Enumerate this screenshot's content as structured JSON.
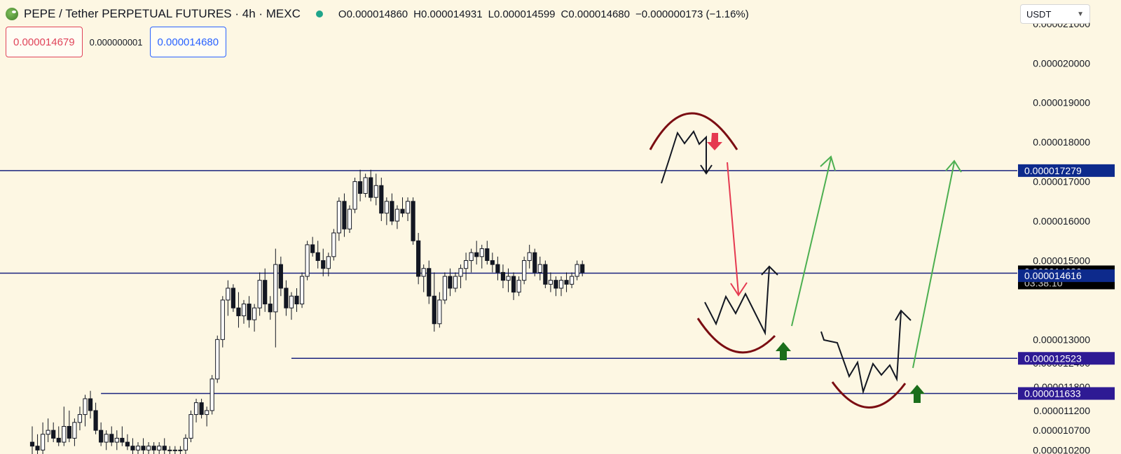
{
  "header": {
    "symbol": "PEPE / Tether PERPETUAL FUTURES · 4h · MEXC",
    "ohlc": [
      {
        "label": "O",
        "value": "0.000014860"
      },
      {
        "label": "H",
        "value": "0.000014931"
      },
      {
        "label": "L",
        "value": "0.000014599"
      },
      {
        "label": "C",
        "value": "0.000014680"
      }
    ],
    "change": "−0.000000173 (−1.16%)"
  },
  "trade": {
    "sell_price": "0.000014679",
    "spread": "0.000000001",
    "buy_price": "0.000014680"
  },
  "currency": {
    "selected": "USDT"
  },
  "colors": {
    "background": "#fdf7e3",
    "up": "#ffffff",
    "down": "#131722",
    "level_line": "#1a237e",
    "arrow_green": "#4caf50",
    "arrow_red": "#e53950",
    "arc_dark_red": "#7b0d12",
    "badge_blue": "#0d2a8c",
    "badge_purple": "#2e1a94"
  },
  "chart_data": {
    "type": "candlestick",
    "y_axis": {
      "min": 1.01e-05,
      "max": 2.16e-05,
      "ticks": [
        {
          "value": 2.1e-05,
          "label": "0.000021000"
        },
        {
          "value": 2e-05,
          "label": "0.000020000"
        },
        {
          "value": 1.9e-05,
          "label": "0.000019000"
        },
        {
          "value": 1.8e-05,
          "label": "0.000018000"
        },
        {
          "value": 1.7e-05,
          "label": "0.000017000"
        },
        {
          "value": 1.6e-05,
          "label": "0.000016000"
        },
        {
          "value": 1.5e-05,
          "label": "0.000015000"
        },
        {
          "value": 1.3e-05,
          "label": "0.000013000"
        },
        {
          "value": 1.24e-05,
          "label": "0.000012400"
        },
        {
          "value": 1.18e-05,
          "label": "0.000011800"
        },
        {
          "value": 1.12e-05,
          "label": "0.000011200"
        },
        {
          "value": 1.07e-05,
          "label": "0.000010700"
        },
        {
          "value": 1.02e-05,
          "label": "0.000010200"
        }
      ]
    },
    "price_badges": [
      {
        "value": 1.7279e-05,
        "label": "0.000017279",
        "style": "level"
      },
      {
        "value": 1.468e-05,
        "label": "0.000014680",
        "sub": "03:38:10",
        "style": "current"
      },
      {
        "value": 1.4616e-05,
        "label": "0.000014616",
        "style": "level"
      },
      {
        "value": 1.2523e-05,
        "label": "0.000012523",
        "style": "level2"
      },
      {
        "value": 1.1633e-05,
        "label": "0.000011633",
        "style": "level2"
      }
    ],
    "horizontal_lines": [
      {
        "value": 1.7279e-05,
        "from": 0
      },
      {
        "value": 1.468e-05,
        "from": 0
      },
      {
        "value": 1.2523e-05,
        "from": 49
      },
      {
        "value": 1.1633e-05,
        "from": 13
      }
    ],
    "candles": [
      [
        1.04e-05,
        1.08e-05,
        1.01e-05,
        1.03e-05
      ],
      [
        1.03e-05,
        1.06e-05,
        1.01e-05,
        1.02e-05
      ],
      [
        1.02e-05,
        1.09e-05,
        1.01e-05,
        1.06e-05
      ],
      [
        1.06e-05,
        1.1e-05,
        1.04e-05,
        1.07e-05
      ],
      [
        1.07e-05,
        1.09e-05,
        1.04e-05,
        1.05e-05
      ],
      [
        1.05e-05,
        1.08e-05,
        1.03e-05,
        1.04e-05
      ],
      [
        1.04e-05,
        1.13e-05,
        1.03e-05,
        1.08e-05
      ],
      [
        1.08e-05,
        1.12e-05,
        1.04e-05,
        1.05e-05
      ],
      [
        1.05e-05,
        1.1e-05,
        1.03e-05,
        1.09e-05
      ],
      [
        1.09e-05,
        1.13e-05,
        1.07e-05,
        1.11e-05
      ],
      [
        1.11e-05,
        1.16e-05,
        1.08e-05,
        1.15e-05
      ],
      [
        1.15e-05,
        1.17e-05,
        1.1e-05,
        1.12e-05
      ],
      [
        1.12e-05,
        1.14e-05,
        1.06e-05,
        1.07e-05
      ],
      [
        1.07e-05,
        1.09e-05,
        1.03e-05,
        1.04e-05
      ],
      [
        1.04e-05,
        1.07e-05,
        1.02e-05,
        1.06e-05
      ],
      [
        1.06e-05,
        1.08e-05,
        1.03e-05,
        1.04e-05
      ],
      [
        1.04e-05,
        1.07e-05,
        1.02e-05,
        1.05e-05
      ],
      [
        1.05e-05,
        1.08e-05,
        1.03e-05,
        1.04e-05
      ],
      [
        1.04e-05,
        1.06e-05,
        1.02e-05,
        1.03e-05
      ],
      [
        1.03e-05,
        1.05e-05,
        1.01e-05,
        1.02e-05
      ],
      [
        1.02e-05,
        1.04e-05,
        1.01e-05,
        1.03e-05
      ],
      [
        1.03e-05,
        1.05e-05,
        1.01e-05,
        1.02e-05
      ],
      [
        1.02e-05,
        1.04e-05,
        1.01e-05,
        1.03e-05
      ],
      [
        1.03e-05,
        1.04e-05,
        1.01e-05,
        1.02e-05
      ],
      [
        1.02e-05,
        1.04e-05,
        1.01e-05,
        1.03e-05
      ],
      [
        1.03e-05,
        1.05e-05,
        1.01e-05,
        1.02e-05
      ],
      [
        1.02e-05,
        1.03e-05,
        1.01e-05,
        1.02e-05
      ],
      [
        1.02e-05,
        1.03e-05,
        1.01e-05,
        1.02e-05
      ],
      [
        1.02e-05,
        1.03e-05,
        1.01e-05,
        1.02e-05
      ],
      [
        1.02e-05,
        1.06e-05,
        1.01e-05,
        1.05e-05
      ],
      [
        1.05e-05,
        1.12e-05,
        1.04e-05,
        1.11e-05
      ],
      [
        1.11e-05,
        1.15e-05,
        1.09e-05,
        1.14e-05
      ],
      [
        1.14e-05,
        1.15e-05,
        1.1e-05,
        1.11e-05
      ],
      [
        1.11e-05,
        1.13e-05,
        1.08e-05,
        1.12e-05
      ],
      [
        1.12e-05,
        1.21e-05,
        1.11e-05,
        1.2e-05
      ],
      [
        1.2e-05,
        1.31e-05,
        1.19e-05,
        1.3e-05
      ],
      [
        1.3e-05,
        1.41e-05,
        1.28e-05,
        1.4e-05
      ],
      [
        1.4e-05,
        1.45e-05,
        1.36e-05,
        1.43e-05
      ],
      [
        1.43e-05,
        1.44e-05,
        1.37e-05,
        1.38e-05
      ],
      [
        1.38e-05,
        1.42e-05,
        1.33e-05,
        1.36e-05
      ],
      [
        1.36e-05,
        1.4e-05,
        1.34e-05,
        1.39e-05
      ],
      [
        1.39e-05,
        1.41e-05,
        1.33e-05,
        1.35e-05
      ],
      [
        1.35e-05,
        1.39e-05,
        1.32e-05,
        1.38e-05
      ],
      [
        1.38e-05,
        1.47e-05,
        1.36e-05,
        1.45e-05
      ],
      [
        1.45e-05,
        1.48e-05,
        1.37e-05,
        1.39e-05
      ],
      [
        1.39e-05,
        1.41e-05,
        1.35e-05,
        1.37e-05
      ],
      [
        1.37e-05,
        1.53e-05,
        1.28e-05,
        1.49e-05
      ],
      [
        1.49e-05,
        1.51e-05,
        1.41e-05,
        1.43e-05
      ],
      [
        1.43e-05,
        1.45e-05,
        1.36e-05,
        1.38e-05
      ],
      [
        1.38e-05,
        1.42e-05,
        1.35e-05,
        1.41e-05
      ],
      [
        1.41e-05,
        1.43e-05,
        1.37e-05,
        1.39e-05
      ],
      [
        1.39e-05,
        1.47e-05,
        1.38e-05,
        1.46e-05
      ],
      [
        1.46e-05,
        1.55e-05,
        1.45e-05,
        1.54e-05
      ],
      [
        1.54e-05,
        1.56e-05,
        1.51e-05,
        1.52e-05
      ],
      [
        1.52e-05,
        1.55e-05,
        1.48e-05,
        1.5e-05
      ],
      [
        1.5e-05,
        1.53e-05,
        1.46e-05,
        1.48e-05
      ],
      [
        1.48e-05,
        1.52e-05,
        1.46e-05,
        1.51e-05
      ],
      [
        1.51e-05,
        1.58e-05,
        1.5e-05,
        1.57e-05
      ],
      [
        1.57e-05,
        1.66e-05,
        1.55e-05,
        1.65e-05
      ],
      [
        1.65e-05,
        1.67e-05,
        1.56e-05,
        1.58e-05
      ],
      [
        1.58e-05,
        1.64e-05,
        1.57e-05,
        1.63e-05
      ],
      [
        1.63e-05,
        1.71e-05,
        1.62e-05,
        1.7e-05
      ],
      [
        1.7e-05,
        1.73e-05,
        1.65e-05,
        1.67e-05
      ],
      [
        1.67e-05,
        1.72e-05,
        1.66e-05,
        1.71e-05
      ],
      [
        1.71e-05,
        1.73e-05,
        1.65e-05,
        1.66e-05
      ],
      [
        1.66e-05,
        1.72e-05,
        1.64e-05,
        1.69e-05
      ],
      [
        1.69e-05,
        1.71e-05,
        1.6e-05,
        1.62e-05
      ],
      [
        1.62e-05,
        1.66e-05,
        1.59e-05,
        1.65e-05
      ],
      [
        1.65e-05,
        1.67e-05,
        1.59e-05,
        1.6e-05
      ],
      [
        1.6e-05,
        1.64e-05,
        1.58e-05,
        1.63e-05
      ],
      [
        1.63e-05,
        1.66e-05,
        1.61e-05,
        1.62e-05
      ],
      [
        1.62e-05,
        1.66e-05,
        1.6e-05,
        1.65e-05
      ],
      [
        1.65e-05,
        1.66e-05,
        1.54e-05,
        1.55e-05
      ],
      [
        1.55e-05,
        1.57e-05,
        1.44e-05,
        1.46e-05
      ],
      [
        1.46e-05,
        1.49e-05,
        1.42e-05,
        1.48e-05
      ],
      [
        1.48e-05,
        1.5e-05,
        1.39e-05,
        1.41e-05
      ],
      [
        1.41e-05,
        1.47e-05,
        1.32e-05,
        1.34e-05
      ],
      [
        1.34e-05,
        1.42e-05,
        1.33e-05,
        1.4e-05
      ],
      [
        1.4e-05,
        1.47e-05,
        1.39e-05,
        1.46e-05
      ],
      [
        1.46e-05,
        1.48e-05,
        1.41e-05,
        1.43e-05
      ],
      [
        1.43e-05,
        1.47e-05,
        1.42e-05,
        1.46e-05
      ],
      [
        1.46e-05,
        1.49e-05,
        1.43e-05,
        1.48e-05
      ],
      [
        1.48e-05,
        1.52e-05,
        1.45e-05,
        1.5e-05
      ],
      [
        1.5e-05,
        1.53e-05,
        1.47e-05,
        1.52e-05
      ],
      [
        1.52e-05,
        1.55e-05,
        1.49e-05,
        1.51e-05
      ],
      [
        1.51e-05,
        1.54e-05,
        1.48e-05,
        1.53e-05
      ],
      [
        1.53e-05,
        1.55e-05,
        1.49e-05,
        1.5e-05
      ],
      [
        1.5e-05,
        1.52e-05,
        1.47e-05,
        1.49e-05
      ],
      [
        1.49e-05,
        1.51e-05,
        1.45e-05,
        1.47e-05
      ],
      [
        1.47e-05,
        1.49e-05,
        1.43e-05,
        1.45e-05
      ],
      [
        1.45e-05,
        1.48e-05,
        1.42e-05,
        1.46e-05
      ],
      [
        1.46e-05,
        1.47e-05,
        1.4e-05,
        1.42e-05
      ],
      [
        1.42e-05,
        1.46e-05,
        1.41e-05,
        1.45e-05
      ],
      [
        1.45e-05,
        1.51e-05,
        1.44e-05,
        1.5e-05
      ],
      [
        1.5e-05,
        1.54e-05,
        1.48e-05,
        1.52e-05
      ],
      [
        1.52e-05,
        1.53e-05,
        1.46e-05,
        1.47e-05
      ],
      [
        1.47e-05,
        1.51e-05,
        1.45e-05,
        1.49e-05
      ],
      [
        1.49e-05,
        1.5e-05,
        1.43e-05,
        1.44e-05
      ],
      [
        1.44e-05,
        1.47e-05,
        1.42e-05,
        1.45e-05
      ],
      [
        1.45e-05,
        1.46e-05,
        1.41e-05,
        1.43e-05
      ],
      [
        1.43e-05,
        1.46e-05,
        1.41e-05,
        1.45e-05
      ],
      [
        1.45e-05,
        1.47e-05,
        1.42e-05,
        1.44e-05
      ],
      [
        1.44e-05,
        1.47e-05,
        1.43e-05,
        1.46e-05
      ],
      [
        1.46e-05,
        1.5e-05,
        1.45e-05,
        1.49e-05
      ],
      [
        1.49e-05,
        1.5e-05,
        1.46e-05,
        1.47e-05
      ]
    ],
    "annotations": {
      "description": "hand-drawn scenario paths with arcs and arrows"
    }
  }
}
